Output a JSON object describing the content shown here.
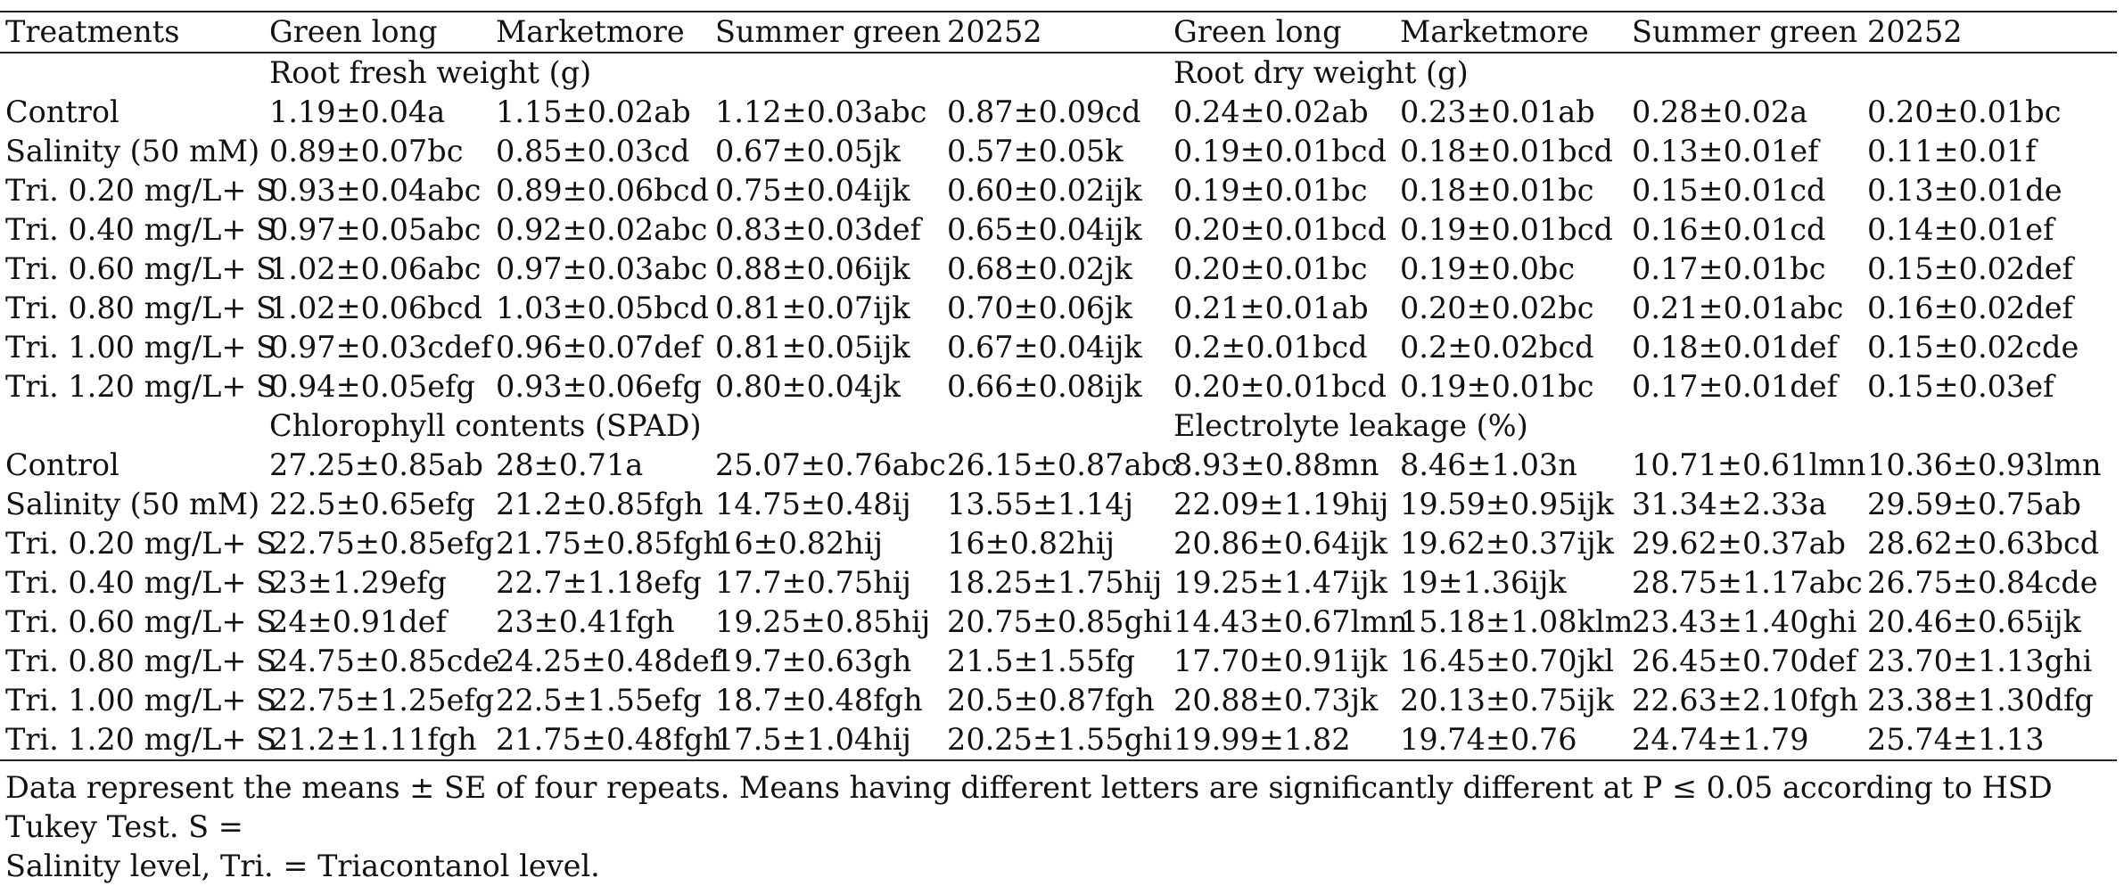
{
  "table": {
    "headers": [
      "Treatments",
      "Green long",
      "Marketmore",
      "Summer green",
      "20252",
      "Green long",
      "Marketmore",
      "Summer green",
      "20252"
    ],
    "sections": [
      {
        "left_title": "Root fresh weight (g)",
        "right_title": "Root dry weight (g)",
        "rows": [
          [
            "Control",
            "1.19±0.04a",
            "1.15±0.02ab",
            "1.12±0.03abc",
            "0.87±0.09cd",
            "0.24±0.02ab",
            "0.23±0.01ab",
            "0.28±0.02a",
            "0.20±0.01bc"
          ],
          [
            "Salinity (50 mM)",
            "0.89±0.07bc",
            "0.85±0.03cd",
            "0.67±0.05jk",
            "0.57±0.05k",
            "0.19±0.01bcd",
            "0.18±0.01bcd",
            "0.13±0.01ef",
            "0.11±0.01f"
          ],
          [
            "Tri. 0.20 mg/L+ S",
            "0.93±0.04abc",
            "0.89±0.06bcd",
            "0.75±0.04ijk",
            "0.60±0.02ijk",
            "0.19±0.01bc",
            "0.18±0.01bc",
            "0.15±0.01cd",
            "0.13±0.01de"
          ],
          [
            "Tri. 0.40 mg/L+ S",
            "0.97±0.05abc",
            "0.92±0.02abc",
            "0.83±0.03def",
            "0.65±0.04ijk",
            "0.20±0.01bcd",
            "0.19±0.01bcd",
            "0.16±0.01cd",
            "0.14±0.01ef"
          ],
          [
            "Tri. 0.60 mg/L+ S",
            "1.02±0.06abc",
            "0.97±0.03abc",
            "0.88±0.06ijk",
            "0.68±0.02jk",
            "0.20±0.01bc",
            "0.19±0.0bc",
            "0.17±0.01bc",
            "0.15±0.02def"
          ],
          [
            "Tri. 0.80 mg/L+ S",
            "1.02±0.06bcd",
            "1.03±0.05bcd",
            "0.81±0.07ijk",
            "0.70±0.06jk",
            "0.21±0.01ab",
            "0.20±0.02bc",
            "0.21±0.01abc",
            "0.16±0.02def"
          ],
          [
            "Tri. 1.00 mg/L+ S",
            "0.97±0.03cdef",
            "0.96±0.07def",
            "0.81±0.05ijk",
            "0.67±0.04ijk",
            "0.2±0.01bcd",
            "0.2±0.02bcd",
            "0.18±0.01def",
            "0.15±0.02cde"
          ],
          [
            "Tri. 1.20 mg/L+ S",
            "0.94±0.05efg",
            "0.93±0.06efg",
            "0.80±0.04jk",
            "0.66±0.08ijk",
            "0.20±0.01bcd",
            "0.19±0.01bc",
            "0.17±0.01def",
            "0.15±0.03ef"
          ]
        ]
      },
      {
        "left_title": "Chlorophyll contents (SPAD)",
        "right_title": "Electrolyte leakage (%)",
        "rows": [
          [
            "Control",
            "27.25±0.85ab",
            "28±0.71a",
            "25.07±0.76abc",
            "26.15±0.87abc",
            "8.93±0.88mn",
            "8.46±1.03n",
            "10.71±0.61lmn",
            "10.36±0.93lmn"
          ],
          [
            "Salinity (50 mM)",
            "22.5±0.65efg",
            "21.2±0.85fgh",
            "14.75±0.48ij",
            "13.55±1.14j",
            "22.09±1.19hij",
            "19.59±0.95ijk",
            "31.34±2.33a",
            "29.59±0.75ab"
          ],
          [
            "Tri. 0.20 mg/L+ S",
            "22.75±0.85efg",
            "21.75±0.85fgh",
            "16±0.82hij",
            "16±0.82hij",
            "20.86±0.64ijk",
            "19.62±0.37ijk",
            "29.62±0.37ab",
            "28.62±0.63bcd"
          ],
          [
            "Tri. 0.40 mg/L+ S",
            "23±1.29efg",
            "22.7±1.18efg",
            "17.7±0.75hij",
            "18.25±1.75hij",
            "19.25±1.47ijk",
            "19±1.36ijk",
            "28.75±1.17abc",
            "26.75±0.84cde"
          ],
          [
            "Tri. 0.60 mg/L+ S",
            "24±0.91def",
            "23±0.41fgh",
            "19.25±0.85hij",
            "20.75±0.85ghi",
            "14.43±0.67lmn",
            "15.18±1.08klm",
            "23.43±1.40ghi",
            "20.46±0.65ijk"
          ],
          [
            "Tri. 0.80 mg/L+ S",
            "24.75±0.85cde",
            "24.25±0.48def",
            "19.7±0.63gh",
            "21.5±1.55fg",
            "17.70±0.91ijk",
            "16.45±0.70jkl",
            "26.45±0.70def",
            "23.70±1.13ghi"
          ],
          [
            "Tri. 1.00 mg/L+ S",
            "22.75±1.25efg",
            "22.5±1.55efg",
            "18.7±0.48fgh",
            "20.5±0.87fgh",
            "20.88±0.73jk",
            "20.13±0.75ijk",
            "22.63±2.10fgh",
            "23.38±1.30dfg"
          ],
          [
            "Tri. 1.20 mg/L+ S",
            "21.2±1.11fgh",
            "21.75±0.48fgh",
            "17.5±1.04hij",
            "20.25±1.55ghi",
            "19.99±1.82",
            "19.74±0.76",
            "24.74±1.79",
            "25.74±1.13"
          ]
        ]
      }
    ]
  },
  "footnote": {
    "line1": "Data represent the means ± SE of four repeats. Means having different letters are significantly different at P ≤ 0.05 according to HSD Tukey Test. S =",
    "line2": "Salinity level, Tri. = Triacontanol level."
  }
}
